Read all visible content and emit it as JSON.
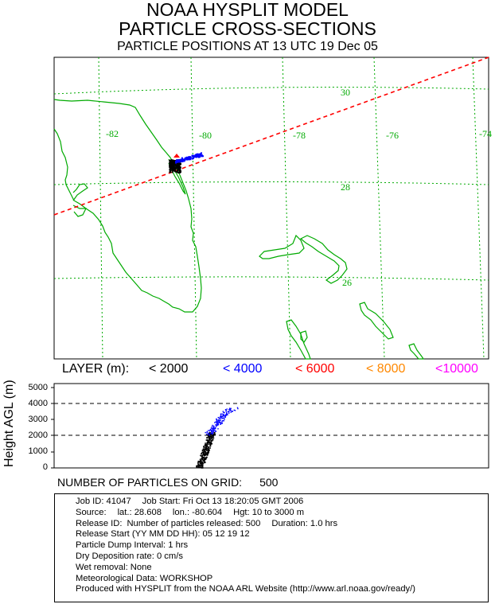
{
  "title": {
    "line1": "NOAA HYSPLIT MODEL",
    "line2": "PARTICLE CROSS-SECTIONS",
    "line3": "PARTICLE POSITIONS AT 13 UTC 19 Dec 05"
  },
  "map": {
    "longitude_labels": [
      "-82",
      "-80",
      "-78",
      "-76",
      "-74"
    ],
    "latitude_labels": [
      "30",
      "28",
      "26"
    ],
    "colors": {
      "coast": "#00aa00",
      "grid": "#00aa00",
      "cross_section": "#ff0000",
      "source_marker": "#ff0000"
    }
  },
  "legend": {
    "layer_label": "LAYER (m):",
    "items": [
      {
        "label": "< 2000",
        "color": "#000000"
      },
      {
        "label": "< 4000",
        "color": "#0000ff"
      },
      {
        "label": "< 6000",
        "color": "#ff0000"
      },
      {
        "label": "< 8000",
        "color": "#ff8800"
      },
      {
        "label": "<10000",
        "color": "#ff00ff"
      }
    ]
  },
  "cross_section": {
    "y_axis_label": "Height AGL (m)",
    "y_ticks": [
      "5000",
      "4000",
      "3000",
      "2000",
      "1000",
      "0"
    ],
    "dashed_levels_m": [
      2000,
      4000
    ]
  },
  "grid_count": {
    "label": "NUMBER OF PARTICLES ON GRID:",
    "value": "500"
  },
  "info": {
    "job_id": "Job ID: 41047",
    "job_start": "Job Start: Fri Oct 13 18:20:05 GMT 2006",
    "source_label": "Source:",
    "lat": "lat.: 28.608",
    "lon": "lon.: -80.604",
    "hgt": "Hgt: 10 to 3000 m",
    "release_id": "Release ID:",
    "num_released": "Number of particles released: 500",
    "duration": "Duration: 1.0 hrs",
    "release_start": "Release Start (YY MM DD HH): 05  12  19  12",
    "dump_interval": "Particle Dump Interval: 1 hrs",
    "dry_dep": "Dry Deposition rate: 0 cm/s",
    "wet_removal": "Wet removal:  None",
    "met_data": "Meteorological Data: WORKSHOP",
    "produced": "Produced with HYSPLIT from the NOAA ARL Website (http://www.arl.noaa.gov/ready/)"
  }
}
